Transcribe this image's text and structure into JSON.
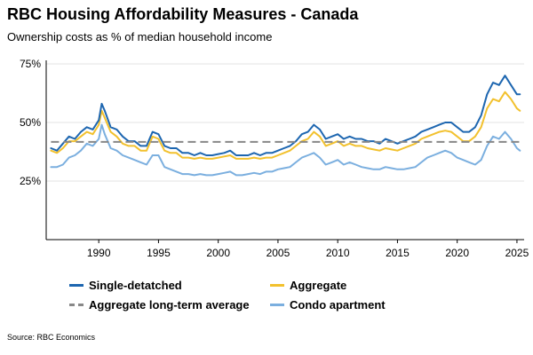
{
  "title": "RBC Housing Affordability Measures - Canada",
  "subtitle": "Ownership costs as % of median household income",
  "source": "Source: RBC Economics",
  "chart_data": {
    "type": "line",
    "title": "RBC Housing Affordability Measures - Canada",
    "subtitle": "Ownership costs as % of median household income",
    "xlim": [
      1985.6,
      2025.6
    ],
    "ylim": [
      0,
      75
    ],
    "x_ticks": [
      1990,
      1995,
      2000,
      2005,
      2010,
      2015,
      2020,
      2025
    ],
    "y_ticks": [
      25,
      50,
      75
    ],
    "y_tick_labels": [
      "25%",
      "50%",
      "75%"
    ],
    "grid": "horizontal",
    "legend_position": "bottom",
    "long_term_average": 41.7,
    "series": [
      {
        "name": "Single-detatched",
        "color": "#1d66b0",
        "style": "solid",
        "x": [
          1986,
          1986.5,
          1987,
          1987.5,
          1988,
          1988.5,
          1989,
          1989.5,
          1990,
          1990.25,
          1990.5,
          1991,
          1991.5,
          1992,
          1992.5,
          1993,
          1993.5,
          1994,
          1994.5,
          1995,
          1995.5,
          1996,
          1996.5,
          1997,
          1997.5,
          1998,
          1998.5,
          1999,
          1999.5,
          2000,
          2000.5,
          2001,
          2001.5,
          2002,
          2002.5,
          2003,
          2003.5,
          2004,
          2004.5,
          2005,
          2005.5,
          2006,
          2006.5,
          2007,
          2007.5,
          2008,
          2008.5,
          2009,
          2009.5,
          2010,
          2010.5,
          2011,
          2011.5,
          2012,
          2012.5,
          2013,
          2013.5,
          2014,
          2014.5,
          2015,
          2015.5,
          2016,
          2016.5,
          2017,
          2017.5,
          2018,
          2018.5,
          2019,
          2019.5,
          2020,
          2020.5,
          2021,
          2021.5,
          2022,
          2022.5,
          2023,
          2023.5,
          2024,
          2024.5,
          2025,
          2025.25
        ],
        "values": [
          39,
          38,
          41,
          44,
          43,
          46,
          48,
          47,
          51,
          58,
          55,
          48,
          47,
          44,
          42,
          42,
          40,
          40,
          46,
          45,
          40,
          39,
          39,
          37,
          37,
          36,
          37,
          36,
          36,
          36.5,
          37,
          38,
          36,
          36,
          36,
          37,
          36,
          37,
          37,
          38,
          39,
          40,
          42,
          45,
          46,
          49,
          47,
          43,
          44,
          45,
          43,
          44,
          43,
          43,
          42,
          42,
          41,
          43,
          42,
          41,
          42,
          43,
          44,
          46,
          47,
          48,
          49,
          50,
          50,
          48,
          46,
          46,
          48,
          53,
          62,
          67,
          66,
          70,
          66,
          62,
          62
        ]
      },
      {
        "name": "Aggregate",
        "color": "#f2c12e",
        "style": "solid",
        "x": [
          1986,
          1986.5,
          1987,
          1987.5,
          1988,
          1988.5,
          1989,
          1989.5,
          1990,
          1990.25,
          1990.5,
          1991,
          1991.5,
          1992,
          1992.5,
          1993,
          1993.5,
          1994,
          1994.5,
          1995,
          1995.5,
          1996,
          1996.5,
          1997,
          1997.5,
          1998,
          1998.5,
          1999,
          1999.5,
          2000,
          2000.5,
          2001,
          2001.5,
          2002,
          2002.5,
          2003,
          2003.5,
          2004,
          2004.5,
          2005,
          2005.5,
          2006,
          2006.5,
          2007,
          2007.5,
          2008,
          2008.5,
          2009,
          2009.5,
          2010,
          2010.5,
          2011,
          2011.5,
          2012,
          2012.5,
          2013,
          2013.5,
          2014,
          2014.5,
          2015,
          2015.5,
          2016,
          2016.5,
          2017,
          2017.5,
          2018,
          2018.5,
          2019,
          2019.5,
          2020,
          2020.5,
          2021,
          2021.5,
          2022,
          2022.5,
          2023,
          2023.5,
          2024,
          2024.5,
          2025,
          2025.25
        ],
        "values": [
          38,
          37,
          39,
          42,
          42,
          44,
          46,
          45,
          49,
          55,
          52,
          46,
          44,
          41,
          40,
          40,
          38,
          38,
          44,
          43,
          38,
          37,
          37,
          35,
          35,
          34.5,
          35,
          34.5,
          34.5,
          35,
          35.5,
          36,
          34.5,
          34.5,
          34.5,
          35,
          34.5,
          35,
          35,
          36,
          37,
          38,
          40,
          42,
          43,
          46,
          44,
          40,
          41,
          42,
          40,
          41,
          40,
          40,
          39,
          38.5,
          38,
          39,
          38.5,
          38,
          39,
          40,
          41,
          43,
          44,
          45,
          46,
          46.5,
          46,
          44,
          42,
          42,
          44,
          48,
          56,
          60,
          59,
          63,
          60,
          56,
          55
        ]
      },
      {
        "name": "Aggregate long-term average",
        "color": "#888888",
        "style": "dashed",
        "x": [
          1986,
          2025.25
        ],
        "values": [
          41.7,
          41.7
        ]
      },
      {
        "name": "Condo apartment",
        "color": "#7bafdf",
        "style": "solid",
        "x": [
          1986,
          1986.5,
          1987,
          1987.5,
          1988,
          1988.5,
          1989,
          1989.5,
          1990,
          1990.25,
          1990.5,
          1991,
          1991.5,
          1992,
          1992.5,
          1993,
          1993.5,
          1994,
          1994.5,
          1995,
          1995.5,
          1996,
          1996.5,
          1997,
          1997.5,
          1998,
          1998.5,
          1999,
          1999.5,
          2000,
          2000.5,
          2001,
          2001.5,
          2002,
          2002.5,
          2003,
          2003.5,
          2004,
          2004.5,
          2005,
          2005.5,
          2006,
          2006.5,
          2007,
          2007.5,
          2008,
          2008.5,
          2009,
          2009.5,
          2010,
          2010.5,
          2011,
          2011.5,
          2012,
          2012.5,
          2013,
          2013.5,
          2014,
          2014.5,
          2015,
          2015.5,
          2016,
          2016.5,
          2017,
          2017.5,
          2018,
          2018.5,
          2019,
          2019.5,
          2020,
          2020.5,
          2021,
          2021.5,
          2022,
          2022.5,
          2023,
          2023.5,
          2024,
          2024.5,
          2025,
          2025.25
        ],
        "values": [
          31,
          31,
          32,
          35,
          36,
          38,
          41,
          40,
          43,
          49,
          45,
          39,
          38,
          36,
          35,
          34,
          33,
          32,
          36,
          36,
          31,
          30,
          29,
          28,
          28,
          27.5,
          28,
          27.5,
          27.5,
          28,
          28.5,
          29,
          27.5,
          27.5,
          28,
          28.5,
          28,
          29,
          29,
          30,
          30.5,
          31,
          33,
          35,
          36,
          37,
          35,
          32,
          33,
          34,
          32,
          33,
          32,
          31,
          30.5,
          30,
          30,
          31,
          30.5,
          30,
          30,
          30.5,
          31,
          33,
          35,
          36,
          37,
          38,
          37,
          35,
          34,
          33,
          32,
          34,
          40,
          44,
          43,
          46,
          43,
          39,
          38
        ]
      }
    ]
  },
  "legend": {
    "items": [
      {
        "label": "Single-detatched",
        "color": "#1d66b0",
        "style": "solid"
      },
      {
        "label": "Aggregate",
        "color": "#f2c12e",
        "style": "solid"
      },
      {
        "label": "Aggregate long-term average",
        "color": "#888888",
        "style": "dashed"
      },
      {
        "label": "Condo apartment",
        "color": "#7bafdf",
        "style": "solid"
      }
    ]
  }
}
